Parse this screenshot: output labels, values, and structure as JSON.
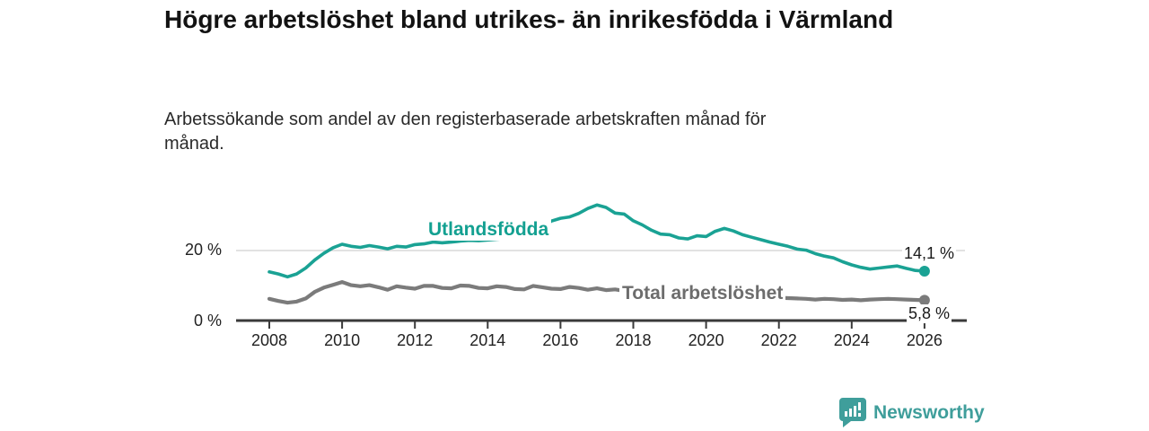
{
  "chart_data": {
    "type": "line",
    "title": "Högre arbetslöshet bland utrikes- än inrikesfödda i Värmland",
    "subtitle": "Arbetssökande som andel av den registerbaserade arbetskraften månad för månad.",
    "unit": "%",
    "x_start": 2008,
    "x_step": 0.25,
    "x_end": 2026,
    "x_tick_years": [
      "2008",
      "2010",
      "2012",
      "2014",
      "2016",
      "2018",
      "2020",
      "2022",
      "2024",
      "2026"
    ],
    "ylim": [
      0,
      36
    ],
    "gridlines_y": [
      20
    ],
    "y_axis_labels": [
      {
        "text": "20 %",
        "value": 20
      },
      {
        "text": "0 %",
        "value": 0
      }
    ],
    "legend_position": "inline-labels-on-lines",
    "series": [
      {
        "name": "Utlandsfödda",
        "color": "#1aa294",
        "end_label": "14,1 %",
        "end_value": 14.1,
        "values": [
          13.9,
          13.3,
          12.5,
          13.3,
          15.0,
          17.3,
          19.2,
          20.8,
          21.8,
          21.2,
          20.9,
          21.4,
          21.0,
          20.5,
          21.2,
          21.0,
          21.7,
          21.9,
          22.4,
          22.2,
          22.4,
          22.7,
          22.9,
          22.8,
          23.0,
          23.2,
          23.4,
          23.7,
          24.2,
          25.2,
          26.8,
          28.4,
          29.2,
          29.6,
          30.6,
          32.0,
          33.0,
          32.3,
          30.7,
          30.4,
          28.5,
          27.3,
          25.8,
          24.7,
          24.5,
          23.6,
          23.3,
          24.2,
          24.0,
          25.5,
          26.3,
          25.6,
          24.5,
          23.8,
          23.1,
          22.4,
          21.8,
          21.2,
          20.4,
          20.1,
          19.1,
          18.4,
          17.9,
          16.8,
          15.9,
          15.2,
          14.7,
          15.0,
          15.3,
          15.6,
          14.9,
          14.3,
          14.1
        ]
      },
      {
        "name": "Total arbetslöshet",
        "color": "#7b7b7b",
        "end_label": "5,8 %",
        "end_value": 5.8,
        "values": [
          6.2,
          5.6,
          5.1,
          5.4,
          6.3,
          8.2,
          9.4,
          10.2,
          11.0,
          10.1,
          9.8,
          10.1,
          9.5,
          8.8,
          9.8,
          9.4,
          9.1,
          9.9,
          9.9,
          9.3,
          9.2,
          10.0,
          9.9,
          9.3,
          9.2,
          9.8,
          9.6,
          9.0,
          8.9,
          9.9,
          9.5,
          9.1,
          9.0,
          9.6,
          9.3,
          8.8,
          9.2,
          8.7,
          8.9,
          8.5,
          8.4,
          8.2,
          8.0,
          7.9,
          7.8,
          7.6,
          7.5,
          7.7,
          8.0,
          8.2,
          7.9,
          7.6,
          7.3,
          7.1,
          6.9,
          6.7,
          6.5,
          6.4,
          6.3,
          6.2,
          6.0,
          6.2,
          6.1,
          5.9,
          6.0,
          5.8,
          6.0,
          6.1,
          6.2,
          6.1,
          6.0,
          5.9,
          5.8
        ]
      }
    ],
    "axis_color": "#3a3a3a",
    "gridline_color": "#d8d8d8"
  },
  "branding": {
    "logo_text": "Newsworthy",
    "logo_color": "#3f9e9b"
  }
}
